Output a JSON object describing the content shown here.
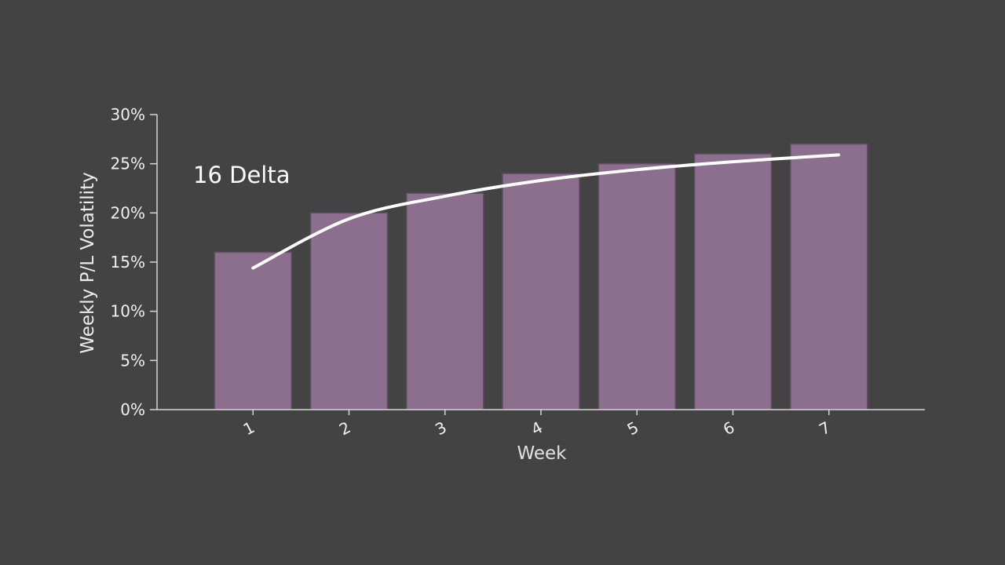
{
  "chart_data": {
    "type": "bar",
    "title": "",
    "xlabel": "Week",
    "ylabel": "Weekly P/L Volatility",
    "categories": [
      "1",
      "2",
      "3",
      "4",
      "5",
      "6",
      "7"
    ],
    "bar_series": {
      "name": "Weekly P/L Volatility",
      "values": [
        16,
        20,
        22,
        24,
        25,
        26,
        27
      ]
    },
    "line_series": {
      "name": "16 Delta",
      "x": [
        1,
        2,
        3,
        4,
        5,
        6,
        7.1
      ],
      "values": [
        14.4,
        19.4,
        21.7,
        23.3,
        24.4,
        25.2,
        25.9
      ]
    },
    "annotation": {
      "text": "16 Delta"
    },
    "ylim": [
      0,
      30
    ],
    "ytick_step": 5,
    "ytick_labels": [
      "0%",
      "5%",
      "10%",
      "15%",
      "20%",
      "25%",
      "30%"
    ],
    "legend": "none",
    "grid": false,
    "colors": {
      "background": "#434343",
      "bar_fill": "#8c6e8e",
      "bar_edge": "#634e66",
      "line": "#ffffff",
      "text": "#f0f0f0",
      "axis": "#d6d6d6"
    }
  }
}
